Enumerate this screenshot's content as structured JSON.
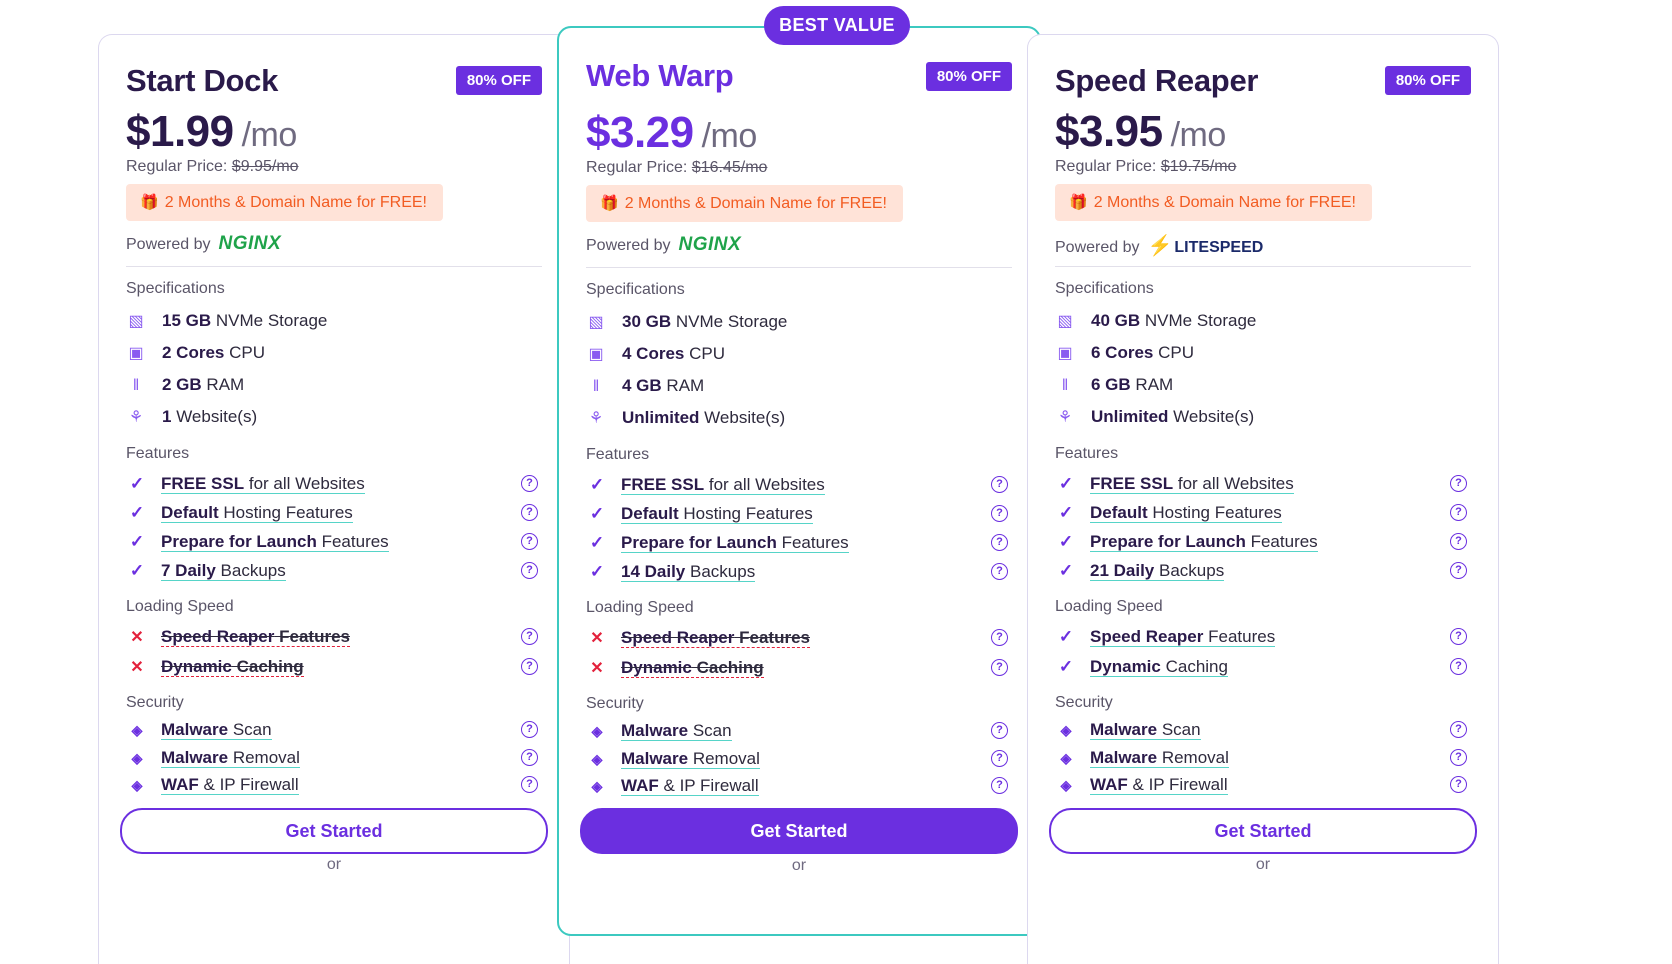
{
  "badge_best": "BEST VALUE",
  "plans": [
    {
      "name": "Start Dock",
      "discount": "80% OFF",
      "price": "$1.99",
      "per": "/mo",
      "regular_label": "Regular Price:",
      "regular_price": "$9.95/mo",
      "promo": "2 Months & Domain Name for FREE!",
      "powered_label": "Powered by",
      "powered_brand": "NGINX",
      "specs_heading": "Specifications",
      "specs": [
        {
          "bold": "15 GB",
          "text": " NVMe Storage",
          "icon": "storage-icon"
        },
        {
          "bold": "2 Cores",
          "text": " CPU",
          "icon": "cpu-icon"
        },
        {
          "bold": "2 GB",
          "text": " RAM",
          "icon": "ram-icon"
        },
        {
          "bold": "1",
          "text": " Website(s)",
          "icon": "website-icon"
        }
      ],
      "features_heading": "Features",
      "features": [
        {
          "bold": "FREE SSL",
          "text": " for all Websites"
        },
        {
          "bold": "Default",
          "text": " Hosting Features"
        },
        {
          "bold": "Prepare for Launch",
          "text": " Features"
        },
        {
          "bold": "7 Daily",
          "text": " Backups"
        }
      ],
      "speed_heading": "Loading Speed",
      "speed": [
        {
          "bold": "Speed Reaper",
          "text": " Features",
          "included": false
        },
        {
          "bold": "Dynamic",
          "text": " Caching",
          "included": false
        }
      ],
      "security_heading": "Security",
      "security": [
        {
          "bold": "Malware",
          "text": " Scan"
        },
        {
          "bold": "Malware",
          "text": " Removal"
        },
        {
          "bold": "WAF",
          "text": " & IP Firewall"
        }
      ],
      "cta": "Get Started",
      "or": "or"
    },
    {
      "name": "Web Warp",
      "discount": "80% OFF",
      "price": "$3.29",
      "per": "/mo",
      "regular_label": "Regular Price:",
      "regular_price": "$16.45/mo",
      "promo": "2 Months & Domain Name for FREE!",
      "powered_label": "Powered by",
      "powered_brand": "NGINX",
      "specs_heading": "Specifications",
      "specs": [
        {
          "bold": "30 GB",
          "text": " NVMe Storage",
          "icon": "storage-icon"
        },
        {
          "bold": "4 Cores",
          "text": " CPU",
          "icon": "cpu-icon"
        },
        {
          "bold": "4 GB",
          "text": " RAM",
          "icon": "ram-icon"
        },
        {
          "bold": "Unlimited",
          "text": " Website(s)",
          "icon": "website-icon"
        }
      ],
      "features_heading": "Features",
      "features": [
        {
          "bold": "FREE SSL",
          "text": " for all Websites"
        },
        {
          "bold": "Default",
          "text": " Hosting Features"
        },
        {
          "bold": "Prepare for Launch",
          "text": " Features"
        },
        {
          "bold": "14 Daily",
          "text": " Backups"
        }
      ],
      "speed_heading": "Loading Speed",
      "speed": [
        {
          "bold": "Speed Reaper",
          "text": " Features",
          "included": false
        },
        {
          "bold": "Dynamic",
          "text": " Caching",
          "included": false
        }
      ],
      "security_heading": "Security",
      "security": [
        {
          "bold": "Malware",
          "text": " Scan"
        },
        {
          "bold": "Malware",
          "text": " Removal"
        },
        {
          "bold": "WAF",
          "text": " & IP Firewall"
        }
      ],
      "cta": "Get Started",
      "or": "or"
    },
    {
      "name": "Speed Reaper",
      "discount": "80% OFF",
      "price": "$3.95",
      "per": "/mo",
      "regular_label": "Regular Price:",
      "regular_price": "$19.75/mo",
      "promo": "2 Months & Domain Name for FREE!",
      "powered_label": "Powered by",
      "powered_brand": "LITESPEED",
      "specs_heading": "Specifications",
      "specs": [
        {
          "bold": "40 GB",
          "text": " NVMe Storage",
          "icon": "storage-icon"
        },
        {
          "bold": "6 Cores",
          "text": " CPU",
          "icon": "cpu-icon"
        },
        {
          "bold": "6 GB",
          "text": " RAM",
          "icon": "ram-icon"
        },
        {
          "bold": "Unlimited",
          "text": " Website(s)",
          "icon": "website-icon"
        }
      ],
      "features_heading": "Features",
      "features": [
        {
          "bold": "FREE SSL",
          "text": " for all Websites"
        },
        {
          "bold": "Default",
          "text": " Hosting Features"
        },
        {
          "bold": "Prepare for Launch",
          "text": " Features"
        },
        {
          "bold": "21 Daily",
          "text": " Backups"
        }
      ],
      "speed_heading": "Loading Speed",
      "speed": [
        {
          "bold": "Speed Reaper",
          "text": " Features",
          "included": true
        },
        {
          "bold": "Dynamic",
          "text": " Caching",
          "included": true
        }
      ],
      "security_heading": "Security",
      "security": [
        {
          "bold": "Malware",
          "text": " Scan"
        },
        {
          "bold": "Malware",
          "text": " Removal"
        },
        {
          "bold": "WAF",
          "text": " & IP Firewall"
        }
      ],
      "cta": "Get Started",
      "or": "or"
    }
  ],
  "colors": {
    "accent": "#6b2fe0",
    "highlight_border": "#3cc9c0",
    "promo_bg": "#ffe3d8",
    "promo_text": "#f25c22",
    "cross": "#e3213b"
  }
}
